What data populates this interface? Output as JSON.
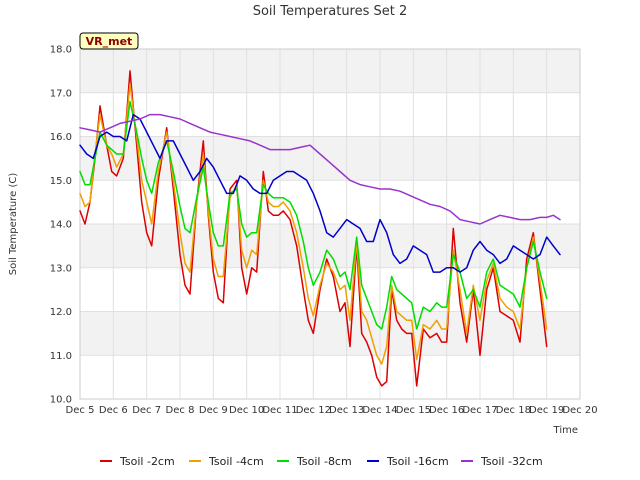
{
  "chart_data": {
    "type": "line",
    "title": "Soil Temperatures Set 2",
    "xlabel": "Time",
    "ylabel": "Soil Temperature (C)",
    "xlim": [
      0,
      15
    ],
    "ylim": [
      10.0,
      18.0
    ],
    "x_ticks": [
      {
        "value": 0,
        "label": "Dec 5"
      },
      {
        "value": 1,
        "label": "Dec 6"
      },
      {
        "value": 2,
        "label": "Dec 7"
      },
      {
        "value": 3,
        "label": "Dec 8"
      },
      {
        "value": 4,
        "label": "Dec 9"
      },
      {
        "value": 5,
        "label": "Dec 10"
      },
      {
        "value": 6,
        "label": "Dec 11"
      },
      {
        "value": 7,
        "label": "Dec 12"
      },
      {
        "value": 8,
        "label": "Dec 13"
      },
      {
        "value": 9,
        "label": "Dec 14"
      },
      {
        "value": 10,
        "label": "Dec 15"
      },
      {
        "value": 11,
        "label": "Dec 16"
      },
      {
        "value": 12,
        "label": "Dec 17"
      },
      {
        "value": 13,
        "label": "Dec 18"
      },
      {
        "value": 14,
        "label": "Dec 19"
      },
      {
        "value": 15,
        "label": "Dec 20"
      }
    ],
    "y_ticks": [
      "10.0",
      "11.0",
      "12.0",
      "13.0",
      "14.0",
      "15.0",
      "16.0",
      "17.0",
      "18.0"
    ],
    "grid": true,
    "legend_position": "bottom",
    "station_label": "VR_met",
    "series": [
      {
        "name": "Tsoil -2cm",
        "color": "#dd0000",
        "x": [
          0.0,
          0.15,
          0.3,
          0.45,
          0.6,
          0.8,
          0.95,
          1.1,
          1.3,
          1.5,
          1.7,
          1.85,
          2.0,
          2.15,
          2.35,
          2.6,
          2.8,
          3.0,
          3.15,
          3.3,
          3.5,
          3.7,
          3.85,
          4.0,
          4.15,
          4.3,
          4.5,
          4.7,
          4.85,
          5.0,
          5.15,
          5.3,
          5.5,
          5.65,
          5.8,
          5.95,
          6.1,
          6.3,
          6.5,
          6.7,
          6.85,
          7.0,
          7.2,
          7.4,
          7.6,
          7.8,
          7.95,
          8.1,
          8.3,
          8.45,
          8.6,
          8.75,
          8.9,
          9.05,
          9.2,
          9.35,
          9.5,
          9.65,
          9.8,
          9.95,
          10.1,
          10.3,
          10.5,
          10.7,
          10.85,
          11.0,
          11.2,
          11.4,
          11.6,
          11.8,
          12.0,
          12.2,
          12.4,
          12.6,
          12.8,
          13.0,
          13.2,
          13.4,
          13.6,
          13.8,
          14.0,
          14.2,
          14.4
        ],
        "y": [
          14.3,
          14.0,
          14.5,
          15.5,
          16.7,
          15.8,
          15.2,
          15.1,
          15.5,
          17.5,
          15.8,
          14.5,
          13.8,
          13.5,
          15.0,
          16.2,
          14.8,
          13.3,
          12.6,
          12.4,
          14.5,
          15.9,
          14.2,
          12.9,
          12.3,
          12.2,
          14.8,
          15.0,
          13.0,
          12.4,
          13.0,
          12.9,
          15.2,
          14.3,
          14.2,
          14.2,
          14.3,
          14.1,
          13.5,
          12.5,
          11.8,
          11.5,
          12.5,
          13.2,
          12.8,
          12.0,
          12.2,
          11.2,
          13.5,
          11.5,
          11.3,
          11.0,
          10.5,
          10.3,
          10.4,
          12.5,
          11.8,
          11.6,
          11.5,
          11.5,
          10.3,
          11.6,
          11.4,
          11.5,
          11.3,
          11.3,
          13.9,
          12.2,
          11.3,
          12.5,
          11.0,
          12.5,
          13.0,
          12.0,
          11.9,
          11.8,
          11.3,
          13.2,
          13.8,
          12.5,
          11.2,
          null,
          null
        ]
      },
      {
        "name": "Tsoil -4cm",
        "color": "#f0a000",
        "x": [
          0.0,
          0.15,
          0.3,
          0.45,
          0.6,
          0.8,
          0.95,
          1.1,
          1.3,
          1.5,
          1.7,
          1.85,
          2.0,
          2.15,
          2.35,
          2.6,
          2.8,
          3.0,
          3.15,
          3.3,
          3.5,
          3.7,
          3.85,
          4.0,
          4.15,
          4.3,
          4.5,
          4.7,
          4.85,
          5.0,
          5.15,
          5.3,
          5.5,
          5.65,
          5.8,
          5.95,
          6.1,
          6.3,
          6.5,
          6.7,
          6.85,
          7.0,
          7.2,
          7.4,
          7.6,
          7.8,
          7.95,
          8.1,
          8.3,
          8.45,
          8.6,
          8.75,
          8.9,
          9.05,
          9.2,
          9.35,
          9.5,
          9.65,
          9.8,
          9.95,
          10.1,
          10.3,
          10.5,
          10.7,
          10.85,
          11.0,
          11.2,
          11.4,
          11.6,
          11.8,
          12.0,
          12.2,
          12.4,
          12.6,
          12.8,
          13.0,
          13.2,
          13.4,
          13.6,
          13.8,
          14.0,
          14.2,
          14.4
        ],
        "y": [
          14.7,
          14.4,
          14.5,
          15.6,
          16.5,
          15.8,
          15.6,
          15.3,
          15.6,
          17.2,
          16.0,
          15.0,
          14.5,
          14.0,
          15.2,
          16.1,
          15.0,
          13.8,
          13.1,
          12.9,
          14.5,
          15.6,
          14.3,
          13.2,
          12.8,
          12.8,
          14.6,
          14.9,
          13.4,
          13.0,
          13.4,
          13.3,
          15.0,
          14.5,
          14.4,
          14.4,
          14.5,
          14.3,
          13.8,
          13.0,
          12.3,
          11.9,
          12.6,
          13.1,
          12.9,
          12.5,
          12.6,
          11.8,
          13.6,
          12.0,
          11.8,
          11.4,
          11.0,
          10.8,
          11.2,
          12.6,
          12.0,
          11.9,
          11.8,
          11.8,
          10.9,
          11.7,
          11.6,
          11.8,
          11.6,
          11.6,
          13.4,
          12.5,
          11.5,
          12.6,
          11.8,
          12.7,
          13.1,
          12.3,
          12.1,
          12.0,
          11.6,
          13.0,
          13.7,
          12.7,
          11.6,
          null,
          null
        ]
      },
      {
        "name": "Tsoil -8cm",
        "color": "#00dd00",
        "x": [
          0.0,
          0.15,
          0.3,
          0.45,
          0.6,
          0.8,
          0.95,
          1.1,
          1.3,
          1.5,
          1.7,
          1.85,
          2.0,
          2.15,
          2.35,
          2.6,
          2.8,
          3.0,
          3.15,
          3.3,
          3.5,
          3.7,
          3.85,
          4.0,
          4.15,
          4.3,
          4.5,
          4.7,
          4.85,
          5.0,
          5.15,
          5.3,
          5.5,
          5.65,
          5.8,
          5.95,
          6.1,
          6.3,
          6.5,
          6.7,
          6.85,
          7.0,
          7.2,
          7.4,
          7.6,
          7.8,
          7.95,
          8.1,
          8.3,
          8.45,
          8.6,
          8.75,
          8.9,
          9.05,
          9.2,
          9.35,
          9.5,
          9.65,
          9.8,
          9.95,
          10.1,
          10.3,
          10.5,
          10.7,
          10.85,
          11.0,
          11.2,
          11.4,
          11.6,
          11.8,
          12.0,
          12.2,
          12.4,
          12.6,
          12.8,
          13.0,
          13.2,
          13.4,
          13.6,
          13.8,
          14.0,
          14.2,
          14.4
        ],
        "y": [
          15.2,
          14.9,
          14.9,
          15.5,
          16.1,
          15.8,
          15.7,
          15.6,
          15.6,
          16.8,
          16.1,
          15.5,
          15.0,
          14.7,
          15.4,
          15.9,
          15.2,
          14.4,
          13.9,
          13.8,
          14.6,
          15.3,
          14.5,
          13.8,
          13.5,
          13.5,
          14.7,
          14.8,
          14.0,
          13.7,
          13.8,
          13.8,
          14.9,
          14.7,
          14.6,
          14.6,
          14.6,
          14.5,
          14.2,
          13.6,
          13.0,
          12.6,
          12.9,
          13.4,
          13.2,
          12.8,
          12.9,
          12.5,
          13.7,
          12.6,
          12.3,
          12.0,
          11.7,
          11.6,
          12.1,
          12.8,
          12.5,
          12.4,
          12.3,
          12.2,
          11.6,
          12.1,
          12.0,
          12.2,
          12.1,
          12.1,
          13.3,
          12.9,
          12.3,
          12.5,
          12.1,
          12.9,
          13.2,
          12.6,
          12.5,
          12.4,
          12.1,
          13.0,
          13.6,
          12.9,
          12.3,
          null,
          null
        ]
      },
      {
        "name": "Tsoil -16cm",
        "color": "#0000cc",
        "x": [
          0.0,
          0.2,
          0.4,
          0.6,
          0.8,
          1.0,
          1.2,
          1.4,
          1.6,
          1.8,
          2.0,
          2.2,
          2.4,
          2.6,
          2.8,
          3.0,
          3.2,
          3.4,
          3.6,
          3.8,
          4.0,
          4.2,
          4.4,
          4.6,
          4.8,
          5.0,
          5.2,
          5.4,
          5.6,
          5.8,
          6.0,
          6.2,
          6.4,
          6.6,
          6.8,
          7.0,
          7.2,
          7.4,
          7.6,
          7.8,
          8.0,
          8.2,
          8.4,
          8.6,
          8.8,
          9.0,
          9.2,
          9.4,
          9.6,
          9.8,
          10.0,
          10.2,
          10.4,
          10.6,
          10.8,
          11.0,
          11.2,
          11.4,
          11.6,
          11.8,
          12.0,
          12.2,
          12.4,
          12.6,
          12.8,
          13.0,
          13.2,
          13.4,
          13.6,
          13.8,
          14.0,
          14.2,
          14.4
        ],
        "y": [
          15.8,
          15.6,
          15.5,
          16.0,
          16.1,
          16.0,
          16.0,
          15.9,
          16.5,
          16.4,
          16.1,
          15.8,
          15.5,
          15.9,
          15.9,
          15.6,
          15.3,
          15.0,
          15.2,
          15.5,
          15.3,
          15.0,
          14.7,
          14.7,
          15.1,
          15.0,
          14.8,
          14.7,
          14.7,
          15.0,
          15.1,
          15.2,
          15.2,
          15.1,
          15.0,
          14.7,
          14.3,
          13.8,
          13.7,
          13.9,
          14.1,
          14.0,
          13.9,
          13.6,
          13.6,
          14.1,
          13.8,
          13.3,
          13.1,
          13.2,
          13.5,
          13.4,
          13.3,
          12.9,
          12.9,
          13.0,
          13.0,
          12.9,
          13.0,
          13.4,
          13.6,
          13.4,
          13.3,
          13.1,
          13.2,
          13.5,
          13.4,
          13.3,
          13.2,
          13.3,
          13.7,
          13.5,
          13.3
        ]
      },
      {
        "name": "Tsoil -32cm",
        "color": "#9933cc",
        "x": [
          0.0,
          0.3,
          0.6,
          0.9,
          1.2,
          1.5,
          1.8,
          2.1,
          2.4,
          2.7,
          3.0,
          3.3,
          3.6,
          3.9,
          4.2,
          4.5,
          4.8,
          5.1,
          5.4,
          5.7,
          6.0,
          6.3,
          6.6,
          6.9,
          7.2,
          7.5,
          7.8,
          8.1,
          8.4,
          8.7,
          9.0,
          9.3,
          9.6,
          9.9,
          10.2,
          10.5,
          10.8,
          11.1,
          11.4,
          11.7,
          12.0,
          12.3,
          12.6,
          12.9,
          13.2,
          13.5,
          13.8,
          14.0,
          14.2,
          14.4
        ],
        "y": [
          16.2,
          16.15,
          16.1,
          16.2,
          16.3,
          16.35,
          16.4,
          16.5,
          16.5,
          16.45,
          16.4,
          16.3,
          16.2,
          16.1,
          16.05,
          16.0,
          15.95,
          15.9,
          15.8,
          15.7,
          15.7,
          15.7,
          15.75,
          15.8,
          15.6,
          15.4,
          15.2,
          15.0,
          14.9,
          14.85,
          14.8,
          14.8,
          14.75,
          14.65,
          14.55,
          14.45,
          14.4,
          14.3,
          14.1,
          14.05,
          14.0,
          14.1,
          14.2,
          14.15,
          14.1,
          14.1,
          14.15,
          14.15,
          14.2,
          14.1
        ]
      }
    ]
  }
}
